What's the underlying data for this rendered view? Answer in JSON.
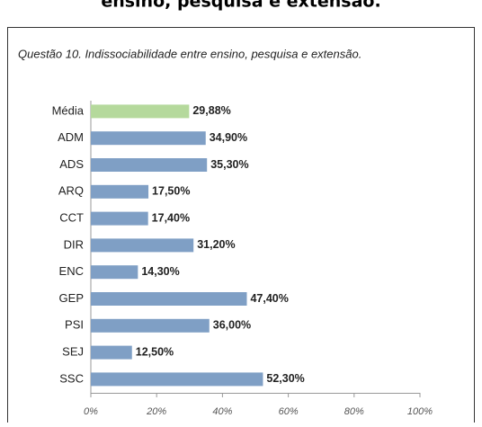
{
  "heading": "ensino, pesquisa e extensão.",
  "chart_data": {
    "type": "barh",
    "title": "Questão 10. Indissociabilidade entre ensino, pesquisa e extensão.",
    "categories": [
      "Média",
      "ADM",
      "ADS",
      "ARQ",
      "CCT",
      "DIR",
      "ENC",
      "GEP",
      "PSI",
      "SEJ",
      "SSC"
    ],
    "values": [
      29.88,
      34.9,
      35.3,
      17.5,
      17.4,
      31.2,
      14.3,
      47.4,
      36.0,
      12.5,
      52.3
    ],
    "value_labels": [
      "29,88%",
      "34,90%",
      "35,30%",
      "17,50%",
      "17,40%",
      "31,20%",
      "14,30%",
      "47,40%",
      "36,00%",
      "12,50%",
      "52,30%"
    ],
    "colors": [
      "#b5d99c",
      "#7f9fc5",
      "#7f9fc5",
      "#7f9fc5",
      "#7f9fc5",
      "#7f9fc5",
      "#7f9fc5",
      "#7f9fc5",
      "#7f9fc5",
      "#7f9fc5",
      "#7f9fc5"
    ],
    "xlim": [
      0,
      100
    ],
    "xticks": [
      {
        "value": 0,
        "label": "0%"
      },
      {
        "value": 20,
        "label": "20%"
      },
      {
        "value": 40,
        "label": "40%"
      },
      {
        "value": 60,
        "label": "60%"
      },
      {
        "value": 80,
        "label": "80%"
      },
      {
        "value": 100,
        "label": "100%"
      }
    ]
  }
}
